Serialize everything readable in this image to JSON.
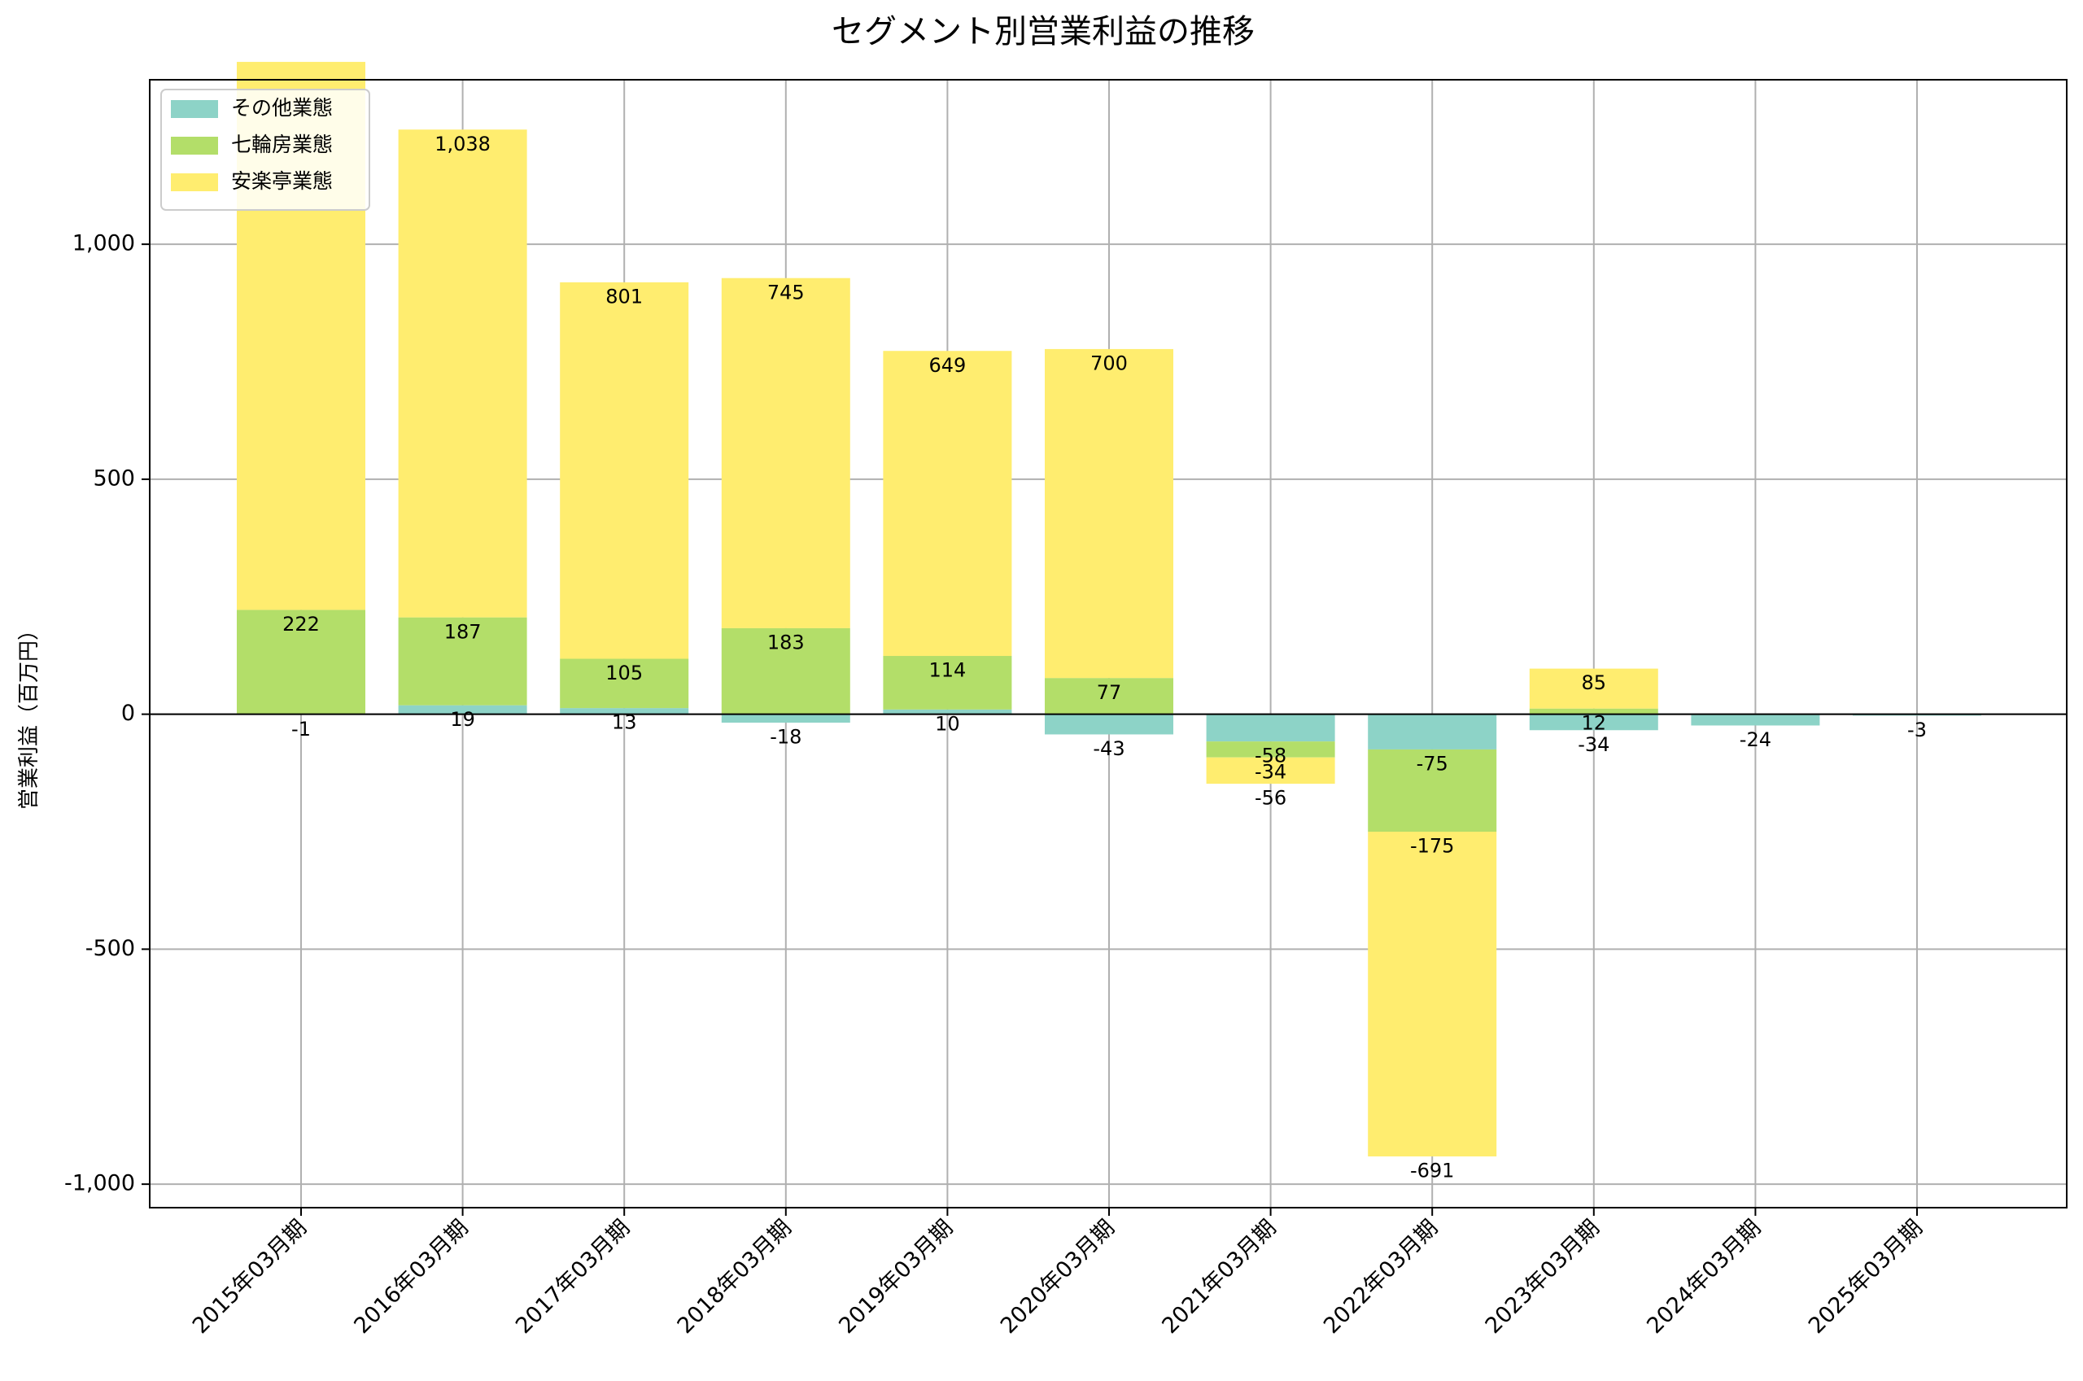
{
  "chart_data": {
    "type": "bar",
    "stacked": true,
    "title": "セグメント別営業利益の推移",
    "xlabel": "",
    "ylabel": "営業利益（百万円）",
    "ylim": [
      -1050,
      1350
    ],
    "yticks": [
      -1000,
      -500,
      0,
      500,
      1000
    ],
    "ytick_labels": [
      "-1,000",
      "-500",
      "0",
      "500",
      "1,000"
    ],
    "grid": true,
    "legend_position": "top-left",
    "categories": [
      "2015年03月期",
      "2016年03月期",
      "2017年03月期",
      "2018年03月期",
      "2019年03月期",
      "2020年03月期",
      "2021年03月期",
      "2022年03月期",
      "2023年03月期",
      "2024年03月期",
      "2025年03月期"
    ],
    "series": [
      {
        "name": "その他業態",
        "color": "#8dd3c7",
        "values": [
          -1,
          19,
          13,
          -18,
          10,
          -43,
          -58,
          -75,
          -34,
          -24,
          -3
        ],
        "labels": [
          "-1",
          "19",
          "13",
          "-18",
          "10",
          "-43",
          "-58",
          "-75",
          "-34",
          "-24",
          "-3"
        ]
      },
      {
        "name": "七輪房業態",
        "color": "#b3de69",
        "values": [
          222,
          187,
          105,
          183,
          114,
          77,
          -34,
          -175,
          12,
          null,
          null
        ],
        "labels": [
          "222",
          "187",
          "105",
          "183",
          "114",
          "77",
          "-34",
          "-175",
          "12",
          "",
          ""
        ]
      },
      {
        "name": "安楽亭業態",
        "color": "#ffed6f",
        "values": [
          1166,
          1038,
          801,
          745,
          649,
          700,
          -56,
          -691,
          85,
          null,
          null
        ],
        "labels": [
          "",
          "1,038",
          "801",
          "745",
          "649",
          "700",
          "-56",
          "-691",
          "85",
          "",
          ""
        ]
      }
    ]
  }
}
